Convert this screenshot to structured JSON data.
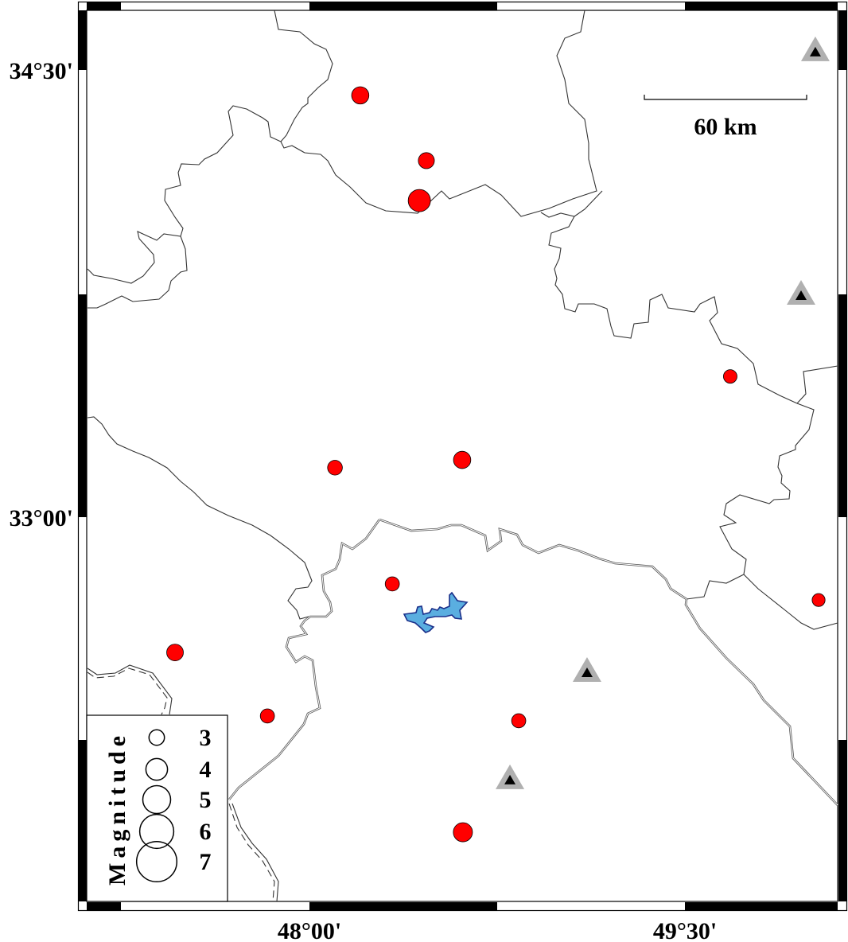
{
  "map": {
    "axis_labels": {
      "lat_top": "34°30'",
      "lat_mid": "33°00'",
      "lon_left": "48°00'",
      "lon_right": "49°30'"
    },
    "extent": {
      "lon_min": 47.22,
      "lon_max": 50.22,
      "lat_min": 31.71,
      "lat_max": 34.7
    },
    "scale_bar": {
      "label": "60 km",
      "length_km": 60
    },
    "colors": {
      "event": "#ff0000",
      "station_outer": "#b0b0b0",
      "station_inner": "#000000",
      "lake": "#5aaee0",
      "lake_outline": "#1a2f8a"
    },
    "events": [
      {
        "lon": 48.203,
        "lat": 34.415,
        "mag": 3.3
      },
      {
        "lon": 48.467,
        "lat": 34.196,
        "mag": 3.1
      },
      {
        "lon": 48.439,
        "lat": 34.062,
        "mag": 4.1
      },
      {
        "lon": 49.681,
        "lat": 33.472,
        "mag": 2.7
      },
      {
        "lon": 48.102,
        "lat": 33.166,
        "mag": 2.9
      },
      {
        "lon": 48.61,
        "lat": 33.192,
        "mag": 3.3
      },
      {
        "lon": 48.331,
        "lat": 32.776,
        "mag": 2.8
      },
      {
        "lon": 50.034,
        "lat": 32.722,
        "mag": 2.6
      },
      {
        "lon": 47.463,
        "lat": 32.546,
        "mag": 3.2
      },
      {
        "lon": 47.832,
        "lat": 32.333,
        "mag": 2.8
      },
      {
        "lon": 48.836,
        "lat": 32.317,
        "mag": 2.8
      },
      {
        "lon": 48.613,
        "lat": 31.943,
        "mag": 3.6
      }
    ],
    "stations": [
      {
        "lon": 50.021,
        "lat": 34.559
      },
      {
        "lon": 49.964,
        "lat": 33.742
      },
      {
        "lon": 49.109,
        "lat": 32.477
      },
      {
        "lon": 48.801,
        "lat": 32.117
      }
    ]
  },
  "legend": {
    "title": "Magnitude",
    "items": [
      {
        "mag": 3,
        "label": "3"
      },
      {
        "mag": 4,
        "label": "4"
      },
      {
        "mag": 5,
        "label": "5"
      },
      {
        "mag": 6,
        "label": "6"
      },
      {
        "mag": 7,
        "label": "7"
      }
    ]
  }
}
